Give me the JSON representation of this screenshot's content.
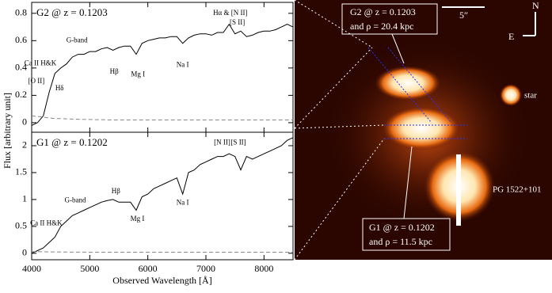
{
  "chart_data": [
    {
      "type": "line",
      "panel_label": "G2 @ z = 0.1203",
      "x": [
        4000,
        4100,
        4200,
        4300,
        4400,
        4500,
        4600,
        4700,
        4800,
        4900,
        5000,
        5100,
        5200,
        5300,
        5400,
        5500,
        5600,
        5700,
        5800,
        5900,
        6000,
        6100,
        6200,
        6300,
        6400,
        6500,
        6600,
        6700,
        6800,
        6900,
        7000,
        7100,
        7200,
        7300,
        7400,
        7500,
        7600,
        7700,
        7800,
        7900,
        8000,
        8100,
        8200,
        8300,
        8400,
        8500
      ],
      "series": [
        {
          "color": "#000000",
          "style": "solid",
          "values": [
            -0.02,
            0.0,
            0.05,
            0.22,
            0.36,
            0.4,
            0.43,
            0.48,
            0.5,
            0.5,
            0.52,
            0.52,
            0.54,
            0.55,
            0.53,
            0.55,
            0.56,
            0.56,
            0.5,
            0.58,
            0.6,
            0.61,
            0.62,
            0.62,
            0.63,
            0.63,
            0.58,
            0.62,
            0.64,
            0.65,
            0.65,
            0.64,
            0.66,
            0.66,
            0.72,
            0.65,
            0.67,
            0.63,
            0.64,
            0.66,
            0.67,
            0.67,
            0.68,
            0.7,
            0.72,
            0.7
          ]
        },
        {
          "color": "#888888",
          "style": "dashed",
          "values": [
            0.05,
            0.045,
            0.04,
            0.035,
            0.03,
            0.03,
            0.028,
            0.026,
            0.025,
            0.024,
            0.023,
            0.022,
            0.022,
            0.021,
            0.02,
            0.02,
            0.02,
            0.02,
            0.02,
            0.02,
            0.02,
            0.02,
            0.02,
            0.02,
            0.02,
            0.02,
            0.02,
            0.02,
            0.02,
            0.02,
            0.02,
            0.02,
            0.02,
            0.02,
            0.02,
            0.02,
            0.02,
            0.02,
            0.02,
            0.02,
            0.02,
            0.02,
            0.02,
            0.02,
            0.02,
            0.02
          ]
        }
      ],
      "xlim": [
        4000,
        8500
      ],
      "ylim": [
        -0.07,
        0.88
      ],
      "yticks": [
        0,
        0.2,
        0.4,
        0.6,
        0.8
      ],
      "annotations": [
        "[O II]",
        "Ca II H&K",
        "Hδ",
        "G-band",
        "Hβ",
        "Mg I",
        "Na I",
        "Hα & [N II]",
        "[S II]"
      ]
    },
    {
      "type": "line",
      "panel_label": "G1 @ z = 0.1202",
      "x": [
        4000,
        4100,
        4200,
        4300,
        4400,
        4500,
        4600,
        4700,
        4800,
        4900,
        5000,
        5100,
        5200,
        5300,
        5400,
        5500,
        5600,
        5700,
        5800,
        5900,
        6000,
        6100,
        6200,
        6300,
        6400,
        6500,
        6600,
        6700,
        6800,
        6900,
        7000,
        7100,
        7200,
        7300,
        7400,
        7500,
        7600,
        7700,
        7800,
        7900,
        8000,
        8100,
        8200,
        8300,
        8400,
        8500
      ],
      "series": [
        {
          "color": "#000000",
          "style": "solid",
          "values": [
            0.0,
            0.05,
            0.1,
            0.2,
            0.3,
            0.5,
            0.6,
            0.7,
            0.75,
            0.8,
            0.85,
            0.9,
            0.95,
            0.98,
            1.0,
            0.95,
            0.95,
            0.95,
            0.8,
            1.05,
            1.1,
            1.2,
            1.25,
            1.3,
            1.35,
            1.4,
            1.1,
            1.5,
            1.55,
            1.65,
            1.7,
            1.75,
            1.8,
            1.8,
            1.85,
            1.8,
            1.55,
            1.8,
            1.75,
            1.8,
            1.85,
            1.9,
            1.95,
            2.0,
            2.1,
            2.15
          ]
        },
        {
          "color": "#888888",
          "style": "dashed",
          "values": [
            0.03,
            0.03,
            0.028,
            0.026,
            0.025,
            0.024,
            0.023,
            0.022,
            0.022,
            0.021,
            0.02,
            0.02,
            0.02,
            0.02,
            0.02,
            0.02,
            0.02,
            0.02,
            0.02,
            0.02,
            0.02,
            0.02,
            0.02,
            0.02,
            0.02,
            0.02,
            0.02,
            0.02,
            0.02,
            0.02,
            0.02,
            0.02,
            0.02,
            0.02,
            0.02,
            0.02,
            0.02,
            0.02,
            0.02,
            0.02,
            0.02,
            0.02,
            0.02,
            0.02,
            0.02,
            0.02
          ]
        }
      ],
      "xlim": [
        4000,
        8500
      ],
      "ylim": [
        -0.12,
        2.25
      ],
      "yticks": [
        0,
        0.5,
        1,
        1.5,
        2
      ],
      "xticks": [
        4000,
        5000,
        6000,
        7000,
        8000
      ],
      "xlabel": "Observed Wavelength [Å]",
      "ylabel": "Flux [arbitrary unit]",
      "annotations": [
        "Ca II H&K",
        "G-band",
        "Hβ",
        "Mg I",
        "Na I",
        "[N II]",
        "[S II]"
      ]
    }
  ],
  "image": {
    "g2_label": [
      "G2 @ z = 0.1203",
      "and ρ = 20.4 kpc"
    ],
    "scale": "5″",
    "north": "N",
    "east": "E",
    "star": "star",
    "qso": "PG 1522+101",
    "g1_label": [
      "G1 @ z = 0.1202",
      "and ρ = 11.5 kpc"
    ]
  }
}
